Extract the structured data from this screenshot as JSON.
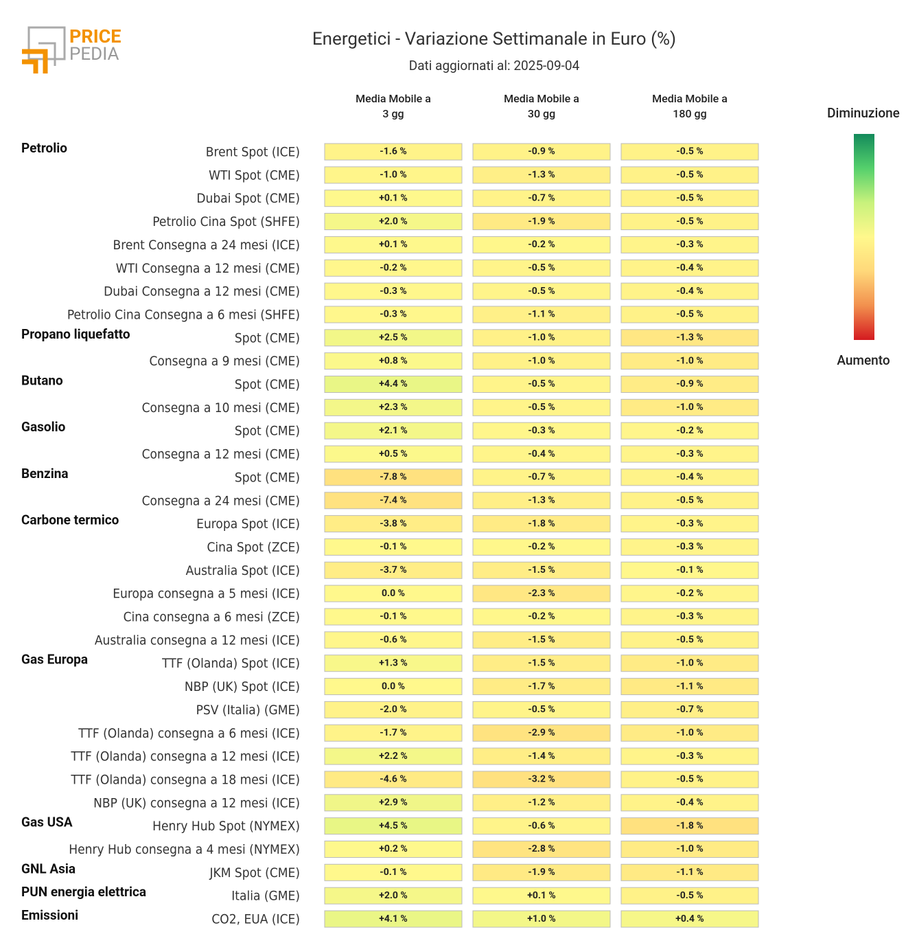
{
  "logo": {
    "top": "PRICE",
    "bottom": "PEDIA"
  },
  "chart_data": {
    "type": "heatmap",
    "title": "Energetici - Variazione Settimanale in Euro (%)",
    "subtitle": "Dati aggiornati al: 2025-09-04",
    "groups": [
      "Petrolio",
      null,
      null,
      null,
      null,
      null,
      null,
      null,
      "Propano liquefatto",
      null,
      "Butano",
      null,
      "Gasolio",
      null,
      "Benzina",
      null,
      "Carbone termico",
      null,
      null,
      null,
      null,
      null,
      "Gas Europa",
      null,
      null,
      null,
      null,
      null,
      null,
      "Gas USA",
      null,
      "GNL Asia",
      "PUN energia elettrica",
      "Emissioni"
    ],
    "categories": [
      "Brent Spot (ICE)",
      "WTI Spot (CME)",
      "Dubai Spot (CME)",
      "Petrolio Cina Spot (SHFE)",
      "Brent Consegna a 24 mesi (ICE)",
      "WTI Consegna a 12 mesi (CME)",
      "Dubai Consegna a 12 mesi (CME)",
      "Petrolio Cina Consegna a 6 mesi (SHFE)",
      "Spot (CME)",
      "Consegna a 9 mesi (CME)",
      "Spot (CME)",
      "Consegna a 10 mesi (CME)",
      "Spot (CME)",
      "Consegna a 12 mesi (CME)",
      "Spot (CME)",
      "Consegna a 24 mesi (CME)",
      "Europa Spot (ICE)",
      "Cina Spot (ZCE)",
      "Australia Spot (ICE)",
      "Europa consegna a 5 mesi (ICE)",
      "Cina consegna a 6 mesi (ZCE)",
      "Australia consegna a 12 mesi (ICE)",
      "TTF (Olanda) Spot (ICE)",
      "NBP (UK) Spot (ICE)",
      "PSV (Italia) (GME)",
      "TTF (Olanda) consegna a 6 mesi (ICE)",
      "TTF (Olanda) consegna a 12 mesi (ICE)",
      "TTF (Olanda) consegna a 18 mesi (ICE)",
      "NBP (UK) consegna a 12 mesi (ICE)",
      "Henry Hub Spot (NYMEX)",
      "Henry Hub consegna a 4 mesi (NYMEX)",
      "JKM Spot (CME)",
      "Italia (GME)",
      "CO2, EUA (ICE)"
    ],
    "series": [
      {
        "name": [
          "Media Mobile a",
          "3 gg"
        ],
        "values": [
          -1.6,
          -1.0,
          0.1,
          2.0,
          0.1,
          -0.2,
          -0.3,
          -0.3,
          2.5,
          0.8,
          4.4,
          2.3,
          2.1,
          0.5,
          -7.8,
          -7.4,
          -3.8,
          -0.1,
          -3.7,
          0.0,
          -0.1,
          -0.6,
          1.3,
          0.0,
          -2.0,
          -1.7,
          2.2,
          -4.6,
          2.9,
          4.5,
          0.2,
          -0.1,
          2.0,
          4.1
        ],
        "value_labels": [
          "-1.6 %",
          "-1.0 %",
          "+0.1 %",
          "+2.0 %",
          "+0.1 %",
          "-0.2 %",
          "-0.3 %",
          "-0.3 %",
          "+2.5 %",
          "+0.8 %",
          "+4.4 %",
          "+2.3 %",
          "+2.1 %",
          "+0.5 %",
          "-7.8 %",
          "-7.4 %",
          "-3.8 %",
          "-0.1 %",
          "-3.7 %",
          "0.0 %",
          "-0.1 %",
          "-0.6 %",
          "+1.3 %",
          "0.0 %",
          "-2.0 %",
          "-1.7 %",
          "+2.2 %",
          "-4.6 %",
          "+2.9 %",
          "+4.5 %",
          "+0.2 %",
          "-0.1 %",
          "+2.0 %",
          "+4.1 %"
        ]
      },
      {
        "name": [
          "Media Mobile a",
          "30 gg"
        ],
        "values": [
          -0.9,
          -1.3,
          -0.7,
          -1.9,
          -0.2,
          -0.5,
          -0.5,
          -1.1,
          -1.0,
          -1.0,
          -0.5,
          -0.5,
          -0.3,
          -0.4,
          -0.7,
          -1.3,
          -1.8,
          -0.2,
          -1.5,
          -2.3,
          -0.2,
          -1.5,
          -1.5,
          -1.7,
          -0.5,
          -2.9,
          -1.4,
          -3.2,
          -1.2,
          -0.6,
          -2.8,
          -1.9,
          0.1,
          1.0
        ],
        "value_labels": [
          "-0.9 %",
          "-1.3 %",
          "-0.7 %",
          "-1.9 %",
          "-0.2 %",
          "-0.5 %",
          "-0.5 %",
          "-1.1 %",
          "-1.0 %",
          "-1.0 %",
          "-0.5 %",
          "-0.5 %",
          "-0.3 %",
          "-0.4 %",
          "-0.7 %",
          "-1.3 %",
          "-1.8 %",
          "-0.2 %",
          "-1.5 %",
          "-2.3 %",
          "-0.2 %",
          "-1.5 %",
          "-1.5 %",
          "-1.7 %",
          "-0.5 %",
          "-2.9 %",
          "-1.4 %",
          "-3.2 %",
          "-1.2 %",
          "-0.6 %",
          "-2.8 %",
          "-1.9 %",
          "+0.1 %",
          "+1.0 %"
        ]
      },
      {
        "name": [
          "Media Mobile a",
          "180 gg"
        ],
        "values": [
          -0.5,
          -0.5,
          -0.5,
          -0.5,
          -0.3,
          -0.4,
          -0.4,
          -0.5,
          -1.3,
          -1.0,
          -0.9,
          -1.0,
          -0.2,
          -0.3,
          -0.4,
          -0.5,
          -0.3,
          -0.3,
          -0.1,
          -0.2,
          -0.3,
          -0.5,
          -1.0,
          -1.1,
          -0.7,
          -1.0,
          -0.3,
          -0.5,
          -0.4,
          -1.8,
          -1.0,
          -1.1,
          -0.5,
          0.4
        ],
        "value_labels": [
          "-0.5 %",
          "-0.5 %",
          "-0.5 %",
          "-0.5 %",
          "-0.3 %",
          "-0.4 %",
          "-0.4 %",
          "-0.5 %",
          "-1.3 %",
          "-1.0 %",
          "-0.9 %",
          "-1.0 %",
          "-0.2 %",
          "-0.3 %",
          "-0.4 %",
          "-0.5 %",
          "-0.3 %",
          "-0.3 %",
          "-0.1 %",
          "-0.2 %",
          "-0.3 %",
          "-0.5 %",
          "-1.0 %",
          "-1.1 %",
          "-0.7 %",
          "-1.0 %",
          "-0.3 %",
          "-0.5 %",
          "-0.4 %",
          "-1.8 %",
          "-1.0 %",
          "-1.1 %",
          "-0.5 %",
          "+0.4 %"
        ]
      }
    ],
    "colorbar": {
      "top_label": "Diminuzione",
      "bottom_label": "Aumento",
      "colors": [
        "#138a5b",
        "#55d06c",
        "#c8f27c",
        "#fff88c",
        "#ffd87a",
        "#f2904e",
        "#d41a20"
      ]
    }
  }
}
